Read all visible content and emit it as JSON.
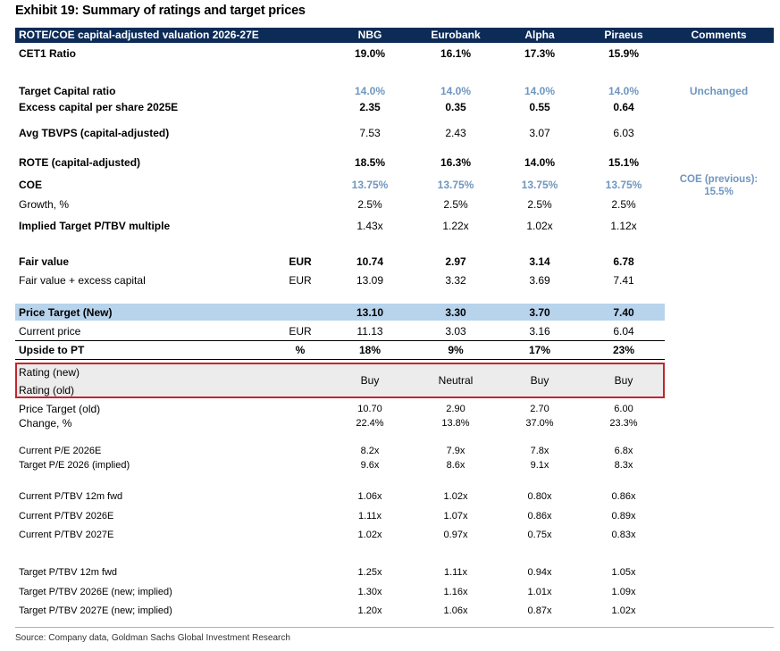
{
  "title": "Exhibit 19: Summary of ratings and target prices",
  "header": {
    "label": "ROTE/COE capital-adjusted valuation 2026-27E",
    "banks": [
      "NBG",
      "Eurobank",
      "Alpha",
      "Piraeus"
    ],
    "comments": "Comments"
  },
  "rows": {
    "cet1": {
      "label": "CET1 Ratio",
      "values": [
        "19.0%",
        "16.1%",
        "17.3%",
        "15.9%"
      ]
    },
    "target_capital": {
      "label": "Target Capital ratio",
      "values": [
        "14.0%",
        "14.0%",
        "14.0%",
        "14.0%"
      ],
      "comment": "Unchanged"
    },
    "excess_capital": {
      "label": "Excess capital per share 2025E",
      "values": [
        "2.35",
        "0.35",
        "0.55",
        "0.64"
      ]
    },
    "avg_tbvps": {
      "label": "Avg TBVPS (capital-adjusted)",
      "values": [
        "7.53",
        "2.43",
        "3.07",
        "6.03"
      ]
    },
    "rote": {
      "label": "ROTE (capital-adjusted)",
      "values": [
        "18.5%",
        "16.3%",
        "14.0%",
        "15.1%"
      ]
    },
    "coe": {
      "label": "COE",
      "values": [
        "13.75%",
        "13.75%",
        "13.75%",
        "13.75%"
      ],
      "comment": "COE (previous): 15.5%"
    },
    "growth": {
      "label": "Growth, %",
      "values": [
        "2.5%",
        "2.5%",
        "2.5%",
        "2.5%"
      ]
    },
    "implied_ptbv": {
      "label": "Implied Target P/TBV multiple",
      "values": [
        "1.43x",
        "1.22x",
        "1.02x",
        "1.12x"
      ]
    },
    "fair_value": {
      "label": "Fair value",
      "unit": "EUR",
      "values": [
        "10.74",
        "2.97",
        "3.14",
        "6.78"
      ]
    },
    "fair_value_excess": {
      "label": "Fair value + excess capital",
      "unit": "EUR",
      "values": [
        "13.09",
        "3.32",
        "3.69",
        "7.41"
      ]
    },
    "price_target_new": {
      "label": "Price Target (New)",
      "values": [
        "13.10",
        "3.30",
        "3.70",
        "7.40"
      ]
    },
    "current_price": {
      "label": "Current price",
      "unit": "EUR",
      "values": [
        "11.13",
        "3.03",
        "3.16",
        "6.04"
      ]
    },
    "upside": {
      "label": "Upside to PT",
      "unit": "%",
      "values": [
        "18%",
        "9%",
        "17%",
        "23%"
      ]
    },
    "rating": {
      "label_new": "Rating (new)",
      "label_old": "Rating (old)",
      "values": [
        "Buy",
        "Neutral",
        "Buy",
        "Buy"
      ]
    },
    "pt_old": {
      "label": "Price Target (old)",
      "values": [
        "10.70",
        "2.90",
        "2.70",
        "6.00"
      ]
    },
    "change": {
      "label": "Change, %",
      "values": [
        "22.4%",
        "13.8%",
        "37.0%",
        "23.3%"
      ]
    },
    "pe_current": {
      "label": "Current P/E 2026E",
      "values": [
        "8.2x",
        "7.9x",
        "7.8x",
        "6.8x"
      ]
    },
    "pe_target": {
      "label": "Target P/E 2026 (implied)",
      "values": [
        "9.6x",
        "8.6x",
        "9.1x",
        "8.3x"
      ]
    },
    "ptbv_cur_12m": {
      "label": "Current P/TBV 12m fwd",
      "values": [
        "1.06x",
        "1.02x",
        "0.80x",
        "0.86x"
      ]
    },
    "ptbv_cur_2026": {
      "label": "Current P/TBV 2026E",
      "values": [
        "1.11x",
        "1.07x",
        "0.86x",
        "0.89x"
      ]
    },
    "ptbv_cur_2027": {
      "label": "Current P/TBV 2027E",
      "values": [
        "1.02x",
        "0.97x",
        "0.75x",
        "0.83x"
      ]
    },
    "ptbv_tgt_12m": {
      "label": "Target P/TBV 12m fwd",
      "values": [
        "1.25x",
        "1.11x",
        "0.94x",
        "1.05x"
      ]
    },
    "ptbv_tgt_2026": {
      "label": "Target P/TBV 2026E (new; implied)",
      "values": [
        "1.30x",
        "1.16x",
        "1.01x",
        "1.09x"
      ]
    },
    "ptbv_tgt_2027": {
      "label": "Target P/TBV 2027E (new; implied)",
      "values": [
        "1.20x",
        "1.06x",
        "0.87x",
        "1.02x"
      ]
    }
  },
  "source": "Source: Company data, Goldman Sachs Global Investment Research",
  "colors": {
    "header_bg": "#0d2b57",
    "highlight_band": "#b8d3ec",
    "accent_blue": "#7096bf",
    "rating_border": "#c1272d",
    "rating_bg": "#ececec"
  }
}
